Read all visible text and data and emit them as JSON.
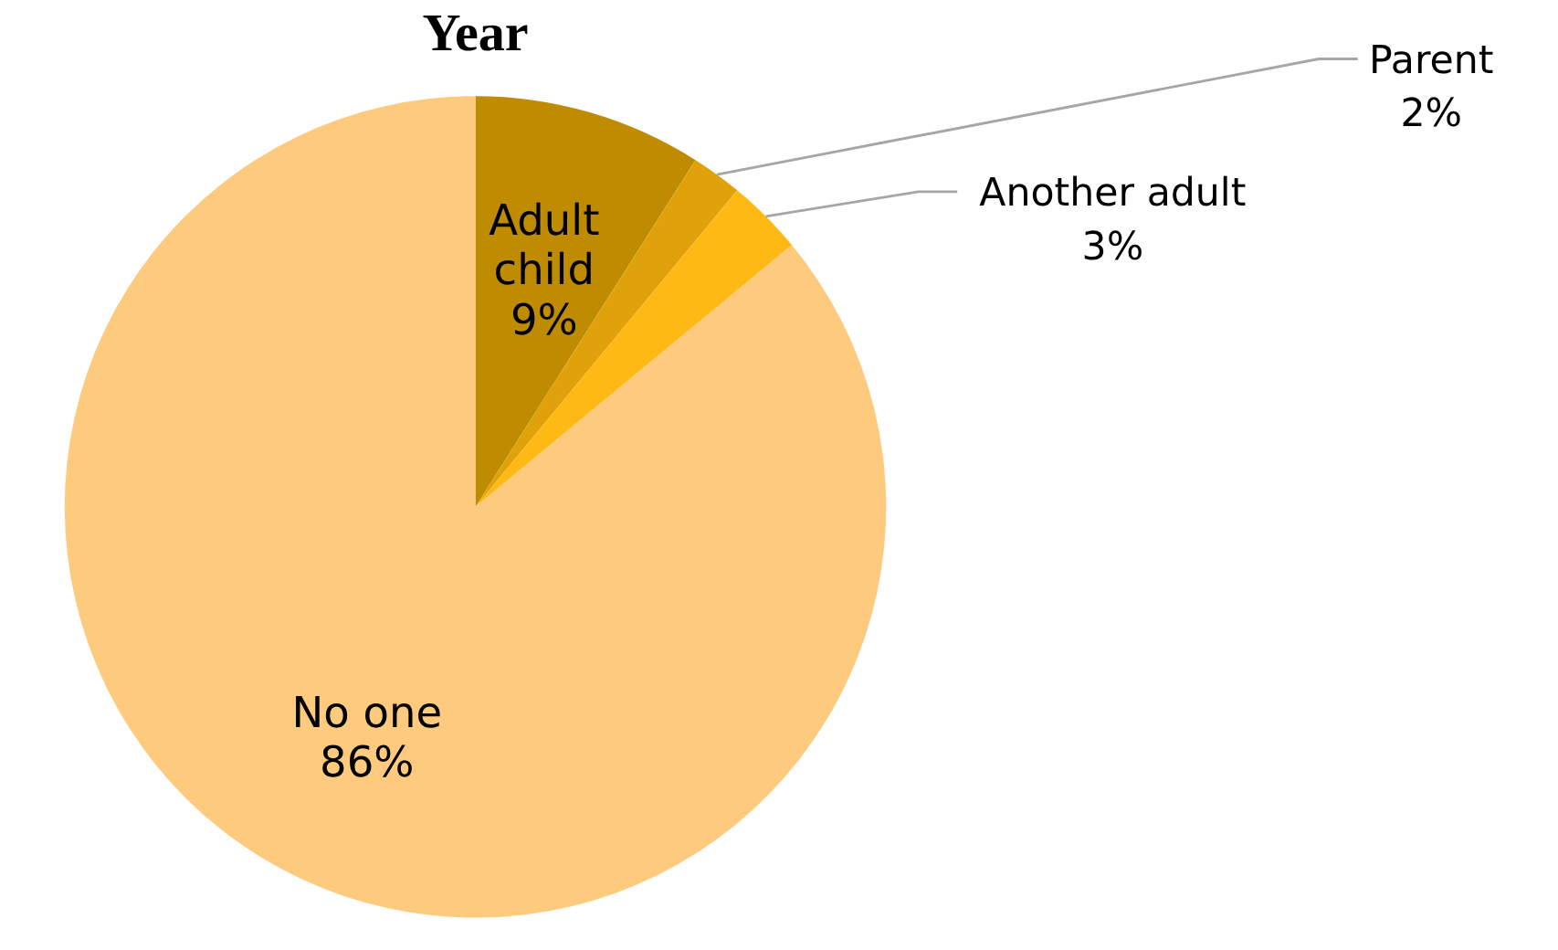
{
  "chart_data": {
    "type": "pie",
    "title": "Year",
    "categories": [
      "Adult child",
      "Parent",
      "Another adult",
      "No one"
    ],
    "values": [
      9,
      2,
      3,
      86
    ],
    "colors": [
      "#bf8b00",
      "#e0a20a",
      "#ffb914",
      "#fdca7e"
    ],
    "value_labels": [
      "9%",
      "2%",
      "3%",
      "86%"
    ]
  }
}
